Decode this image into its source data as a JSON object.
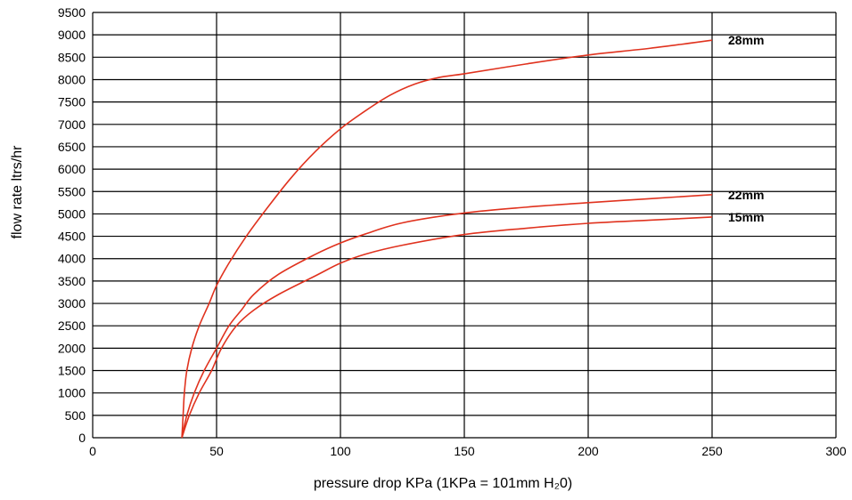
{
  "chart_data": {
    "type": "line",
    "title": "",
    "xlabel": "pressure drop KPa (1KPa = 101mm H₂0)",
    "ylabel": "flow rate ltrs/hr",
    "xlim": [
      0,
      300
    ],
    "ylim": [
      0,
      9500
    ],
    "x_ticks": [
      0,
      50,
      100,
      150,
      200,
      250,
      300
    ],
    "y_ticks": [
      0,
      500,
      1000,
      1500,
      2000,
      2500,
      3000,
      3500,
      4000,
      4500,
      5000,
      5500,
      6000,
      6500,
      7000,
      7500,
      8000,
      8500,
      9000,
      9500
    ],
    "x_tick_labels": [
      "0",
      "50",
      "100",
      "150",
      "200",
      "250",
      "300"
    ],
    "y_tick_labels": [
      "0",
      "500",
      "1000",
      "1500",
      "2000",
      "2500",
      "3000",
      "3500",
      "4000",
      "4500",
      "5000",
      "5500",
      "6000",
      "6500",
      "7000",
      "7500",
      "8000",
      "8500",
      "9000",
      "9500"
    ],
    "grid": true,
    "line_color": "#e0321e",
    "series": [
      {
        "name": "28mm",
        "x": [
          36,
          36.5,
          37,
          38,
          40,
          43,
          47,
          50,
          55,
          62,
          70,
          80,
          90,
          100,
          110,
          120,
          130,
          140,
          150,
          175,
          200,
          225,
          250
        ],
        "y": [
          0,
          500,
          1000,
          1500,
          2000,
          2500,
          3000,
          3400,
          3900,
          4500,
          5100,
          5800,
          6400,
          6900,
          7300,
          7650,
          7900,
          8050,
          8130,
          8350,
          8550,
          8700,
          8880
        ]
      },
      {
        "name": "22mm",
        "x": [
          36,
          38,
          41,
          45,
          50,
          55,
          60,
          65,
          75,
          90,
          100,
          110,
          125,
          150,
          175,
          200,
          225,
          250
        ],
        "y": [
          0,
          500,
          1000,
          1500,
          2000,
          2500,
          2850,
          3200,
          3650,
          4100,
          4350,
          4550,
          4800,
          5020,
          5150,
          5250,
          5340,
          5430
        ]
      },
      {
        "name": "15mm",
        "x": [
          36,
          39,
          43,
          48,
          52,
          58,
          65,
          75,
          90,
          100,
          110,
          125,
          150,
          175,
          200,
          225,
          250
        ],
        "y": [
          0,
          500,
          1000,
          1500,
          2000,
          2500,
          2850,
          3200,
          3620,
          3900,
          4100,
          4300,
          4540,
          4680,
          4790,
          4860,
          4930
        ]
      }
    ]
  }
}
